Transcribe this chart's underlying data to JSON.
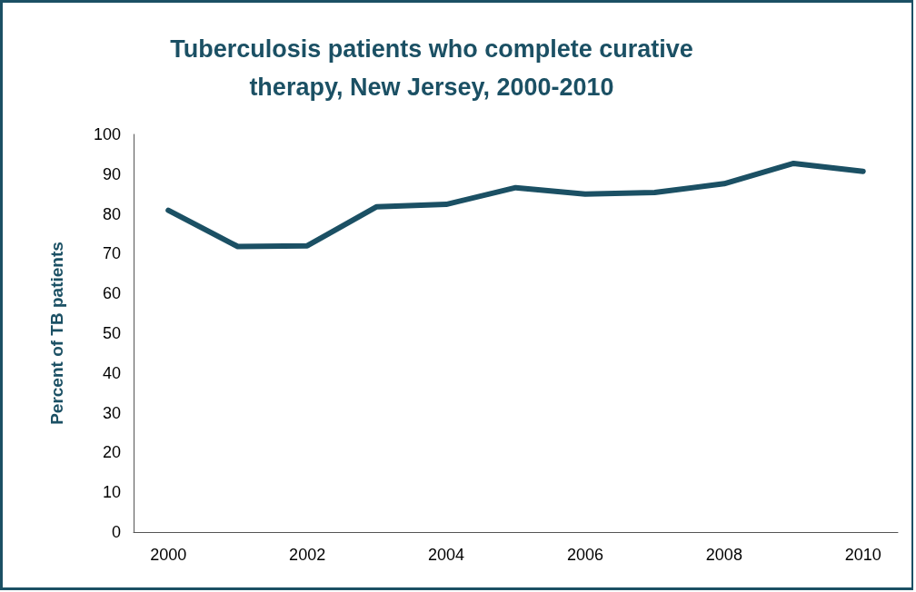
{
  "chart_data": {
    "type": "line",
    "title": "Tuberculosis patients who complete curative\ntherapy, New Jersey, 2000-2010",
    "ylabel": "Percent of TB patients",
    "categories": [
      "2000",
      null,
      "2002",
      null,
      "2004",
      null,
      "2006",
      null,
      "2008",
      null,
      "2010"
    ],
    "series": [
      {
        "color": "#1b5064",
        "values": [
          80.9,
          71.8,
          72.0,
          81.8,
          82.4,
          86.6,
          85.0,
          85.4,
          87.6,
          92.7,
          90.7
        ]
      }
    ],
    "ylim": [
      0,
      100
    ],
    "yticks": [
      0,
      10,
      20,
      30,
      40,
      50,
      60,
      70,
      80,
      90,
      100
    ],
    "marker": "none",
    "line_style": "solid"
  }
}
